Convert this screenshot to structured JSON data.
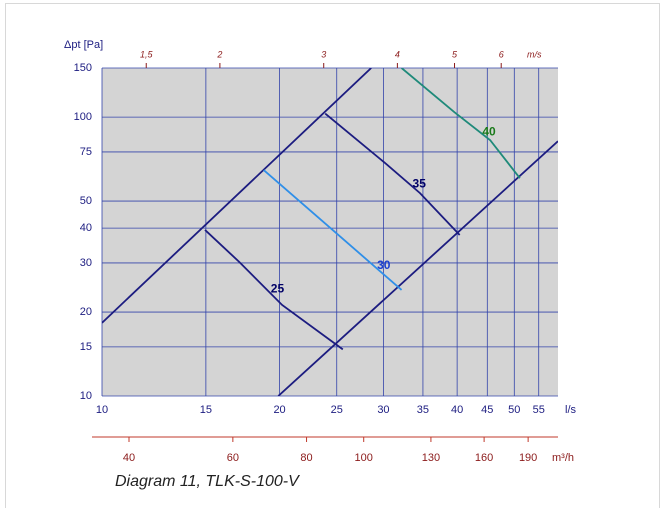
{
  "chart_data": {
    "type": "line",
    "y_label": "Δpt [Pa]",
    "x_label": "l/s",
    "x2_label": "m/s",
    "x3_label": "m³/h",
    "caption": "Diagram 11, TLK-S-100-V",
    "log_x": true,
    "log_y": true,
    "grid": true,
    "xlim": [
      10,
      59.3
    ],
    "xticks": [
      10,
      15,
      20,
      25,
      30,
      35,
      40,
      45,
      50,
      55
    ],
    "ylim": [
      10,
      150
    ],
    "yticks": [
      10,
      15,
      20,
      30,
      40,
      50,
      75,
      100,
      150
    ],
    "x2lim": [
      1.262,
      7.49
    ],
    "x2ticks": [
      {
        "value": 1.5,
        "label": "1,5"
      },
      2,
      3,
      4,
      5,
      6
    ],
    "x3lim": [
      36,
      213.5
    ],
    "x3ticks": [
      40,
      60,
      80,
      100,
      130,
      160,
      190
    ],
    "system_lines": [
      {
        "color": "#1c1c80",
        "x": [
          10,
          28.6
        ],
        "values": [
          18.3,
          150
        ]
      },
      {
        "color": "#1c1c80",
        "x": [
          19.9,
          59.3
        ],
        "values": [
          10,
          82
        ]
      }
    ],
    "series": [
      {
        "name": "25",
        "color": "#1c1c80",
        "label_color": "#000066",
        "x": [
          14.95,
          17.1,
          20.2,
          25.6
        ],
        "values": [
          39.4,
          30.2,
          21.2,
          14.7
        ]
      },
      {
        "name": "30",
        "color": "#2f8fe8",
        "label_color": "#1a3fd0",
        "x": [
          18.8,
          24.6,
          32.2
        ],
        "values": [
          64.6,
          39.4,
          24.0
        ]
      },
      {
        "name": "35",
        "color": "#1c1c80",
        "label_color": "#000066",
        "x": [
          23.9,
          30.2,
          34.6,
          40.4
        ],
        "values": [
          103,
          68.4,
          53.4,
          37.8
        ]
      },
      {
        "name": "40",
        "color": "#1f8a7a",
        "label_color": "#1a7a1a",
        "x": [
          32.2,
          39.6,
          45.5,
          51.1
        ],
        "values": [
          150,
          104,
          82.7,
          60.4
        ]
      }
    ]
  }
}
